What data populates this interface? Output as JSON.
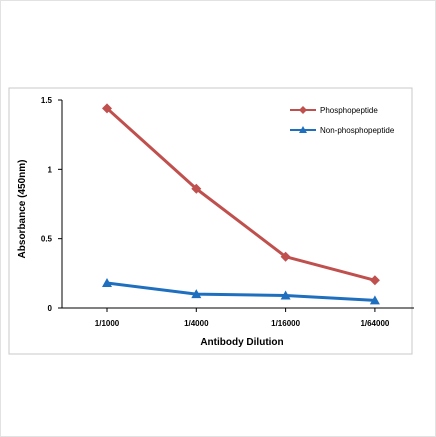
{
  "chart_data": {
    "type": "line",
    "title": "",
    "xlabel": "Antibody Dilution",
    "ylabel": "Absorbance (450nm)",
    "categories": [
      "1/1000",
      "1/4000",
      "1/16000",
      "1/64000"
    ],
    "ylim": [
      0,
      1.5
    ],
    "yticks": [
      {
        "value": 0,
        "label": "0"
      },
      {
        "value": 0.5,
        "label": "0.5"
      },
      {
        "value": 1,
        "label": "1"
      },
      {
        "value": 1.5,
        "label": "1.5"
      }
    ],
    "grid": false,
    "legend_position": "top-right",
    "series": [
      {
        "name": "Phosphopeptide",
        "values": [
          1.44,
          0.86,
          0.37,
          0.2
        ],
        "color": "#c0504d",
        "marker": "diamond"
      },
      {
        "name": "Non-phosphopeptide",
        "values": [
          0.18,
          0.1,
          0.09,
          0.055
        ],
        "color": "#1f6fbf",
        "marker": "triangle"
      }
    ]
  }
}
